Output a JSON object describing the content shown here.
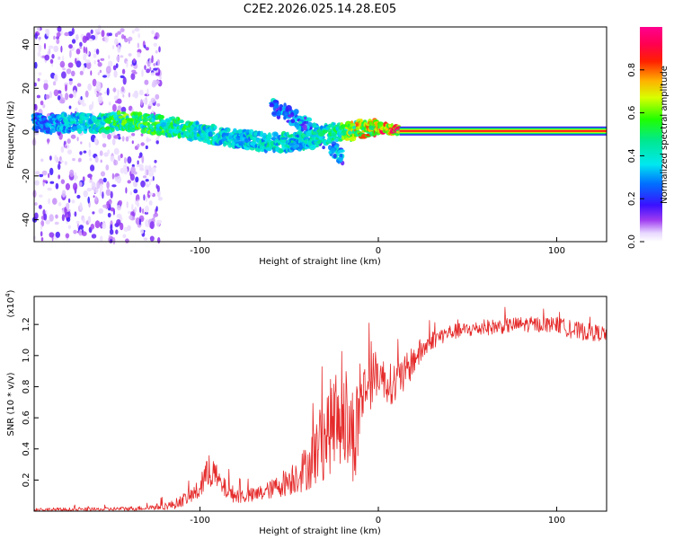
{
  "title": "C2E2.2026.025.14.28.E05",
  "colors": {
    "snr_line": "#e52a2a",
    "spectro_background": "#ffffff",
    "frame": "#000000"
  },
  "chart_data": [
    {
      "type": "heatmap",
      "name": "spectrogram",
      "xlabel": "Height of straight line (km)",
      "ylabel": "Frequency (Hz)",
      "xlim": [
        -193,
        128
      ],
      "ylim": [
        -50,
        48
      ],
      "xticks": [
        -100,
        0,
        100
      ],
      "xtick_labels": [
        "-100",
        "0",
        "100"
      ],
      "yticks": [
        -40,
        -20,
        0,
        20,
        40
      ],
      "ytick_labels": [
        "-40",
        "-20",
        "0",
        "20",
        "40"
      ],
      "colorbar": {
        "label": "Normalized spectral amplitude",
        "range": [
          0,
          1
        ],
        "ticks": [
          0,
          0.2,
          0.4,
          0.6,
          0.8
        ],
        "tick_labels": [
          "0.0",
          "0.2",
          "0.4",
          "0.6",
          "0.8"
        ],
        "colormap": "rainbow (white-purple-blue-cyan-green-yellow-orange-red-magenta)"
      },
      "features": [
        {
          "kind": "scattered_noise",
          "x_range": [
            -193,
            -122
          ],
          "freq_range": [
            -50,
            48
          ],
          "amplitude": 0.1
        },
        {
          "kind": "ridge",
          "x": [
            -193,
            -160,
            -140,
            -120,
            -100,
            -80,
            -60,
            -40,
            -25,
            -10,
            0,
            10,
            30,
            60,
            100,
            128
          ],
          "freq": [
            4,
            4,
            5,
            3,
            0,
            -3,
            -5,
            -4,
            0,
            1,
            2,
            1,
            0.5,
            0.5,
            0.5,
            0.5
          ],
          "amplitude": [
            0.3,
            0.45,
            0.6,
            0.55,
            0.5,
            0.4,
            0.45,
            0.45,
            0.5,
            0.8,
            0.85,
            0.9,
            0.92,
            0.92,
            0.92,
            0.92
          ]
        },
        {
          "kind": "branch",
          "x": [
            -60,
            -50,
            -40,
            -30,
            -20
          ],
          "freq": [
            12,
            8,
            3,
            -4,
            -12
          ],
          "amplitude": 0.3
        }
      ]
    },
    {
      "type": "line",
      "name": "snr",
      "xlabel": "Height of straight line (km)",
      "ylabel": "SNR (10 * v/v)",
      "multiplier_label": "(x10",
      "multiplier_exponent": "4",
      "multiplier_close": ")",
      "xlim": [
        -193,
        128
      ],
      "ylim": [
        0,
        1.38
      ],
      "xticks": [
        -100,
        0,
        100
      ],
      "xtick_labels": [
        "-100",
        "0",
        "100"
      ],
      "yticks": [
        0.2,
        0.4,
        0.6,
        0.8,
        1.0,
        1.2
      ],
      "ytick_labels": [
        "0.2",
        "0.4",
        "0.6",
        "0.8",
        "1.0",
        "1.2"
      ],
      "series": [
        {
          "name": "SNR",
          "x": [
            -193,
            -160,
            -130,
            -115,
            -105,
            -100,
            -97,
            -93,
            -88,
            -80,
            -70,
            -60,
            -50,
            -40,
            -35,
            -30,
            -25,
            -20,
            -16,
            -12,
            -10,
            -8,
            -5,
            0,
            5,
            10,
            15,
            20,
            30,
            40,
            60,
            80,
            100,
            110,
            128
          ],
          "mean": [
            0.01,
            0.01,
            0.02,
            0.04,
            0.1,
            0.14,
            0.22,
            0.26,
            0.16,
            0.1,
            0.1,
            0.14,
            0.2,
            0.28,
            0.38,
            0.48,
            0.58,
            0.62,
            0.5,
            0.52,
            0.7,
            0.78,
            0.82,
            0.9,
            0.82,
            0.82,
            0.88,
            0.98,
            1.1,
            1.15,
            1.18,
            1.2,
            1.2,
            1.16,
            1.14
          ],
          "noise": [
            0.012,
            0.012,
            0.015,
            0.03,
            0.05,
            0.07,
            0.1,
            0.1,
            0.07,
            0.05,
            0.05,
            0.06,
            0.1,
            0.15,
            0.22,
            0.28,
            0.32,
            0.32,
            0.3,
            0.35,
            0.22,
            0.18,
            0.18,
            0.15,
            0.12,
            0.15,
            0.12,
            0.1,
            0.06,
            0.05,
            0.05,
            0.05,
            0.05,
            0.06,
            0.05
          ],
          "color": "#e52a2a"
        }
      ]
    }
  ]
}
